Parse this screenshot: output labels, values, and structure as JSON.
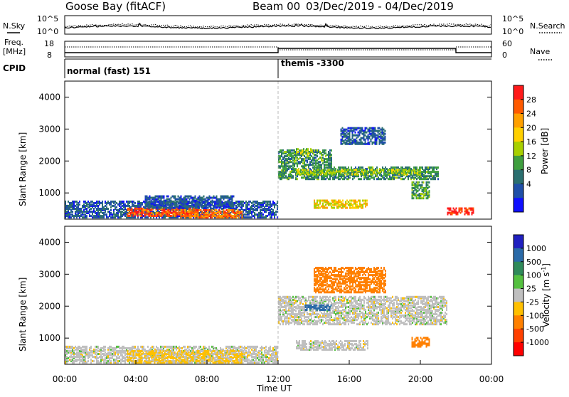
{
  "header": {
    "station": "Goose Bay (fitACF)",
    "beam": "Beam 00",
    "date_range": "03/Dec/2019 - 04/Dec/2019"
  },
  "top_panels": {
    "nsky": {
      "label": "N.Sky",
      "right_label": "N.Search",
      "ticks": [
        "10^5",
        "10^0"
      ],
      "right_ticks": [
        "10^5",
        "10^0"
      ]
    },
    "freq": {
      "label_line1": "Freq.",
      "label_line2": "[MHz]",
      "right_label": "Nave",
      "ticks": [
        "18",
        "8"
      ],
      "right_ticks": [
        "60",
        "0"
      ]
    },
    "cpid": {
      "label": "CPID",
      "modes": [
        "normal (fast) 151",
        "themis -3300"
      ]
    }
  },
  "colorbars": {
    "power": {
      "label": "Power [dB]",
      "ticks": [
        "28",
        "24",
        "20",
        "16",
        "12",
        "8",
        "4"
      ],
      "colors": [
        "#ff1a1a",
        "#ff5a00",
        "#ffa000",
        "#ffd000",
        "#a8d000",
        "#3f9f3f",
        "#2a6f6f",
        "#1f4fa8",
        "#1010ff"
      ]
    },
    "velocity": {
      "label": "Velocity [m s",
      "label_sup": "-1",
      "label_end": "]",
      "ticks": [
        "1000",
        "500",
        "100",
        "25",
        "-25",
        "-100",
        "-500",
        "-1000"
      ],
      "colors": [
        "#2020c0",
        "#2a6aa8",
        "#2f8a5a",
        "#55c040",
        "#bfbfbf",
        "#ffc000",
        "#ff8000",
        "#ff4000",
        "#ff0000"
      ]
    }
  },
  "axes": {
    "ylabel": "Slant Range [km]",
    "yticks": [
      "4000",
      "3000",
      "2000",
      "1000"
    ],
    "xlabel": "Time UT",
    "xticks": [
      "00:00",
      "04:00",
      "08:00",
      "12:00",
      "16:00",
      "20:00",
      "00:00"
    ]
  },
  "chart_data": [
    {
      "type": "heatmap",
      "title": "Power [dB]",
      "xlabel": "Time UT",
      "ylabel": "Slant Range [km]",
      "xlim": [
        0,
        24
      ],
      "ylim": [
        180,
        4500
      ],
      "colorbar_range": [
        0,
        30
      ],
      "regions": [
        {
          "t0": 0.0,
          "t1": 12.0,
          "r0": 200,
          "r1": 700,
          "dB": 6
        },
        {
          "t0": 3.5,
          "t1": 7.5,
          "r0": 250,
          "r1": 500,
          "dB": 26
        },
        {
          "t0": 6.5,
          "t1": 10.0,
          "r0": 200,
          "r1": 450,
          "dB": 24
        },
        {
          "t0": 4.5,
          "t1": 9.5,
          "r0": 500,
          "r1": 900,
          "dB": 6
        },
        {
          "t0": 12.0,
          "t1": 21.0,
          "r0": 1400,
          "r1": 1800,
          "dB": 10
        },
        {
          "t0": 13.0,
          "t1": 20.0,
          "r0": 1550,
          "r1": 1700,
          "dB": 14
        },
        {
          "t0": 12.0,
          "t1": 15.0,
          "r0": 1800,
          "r1": 2300,
          "dB": 10
        },
        {
          "t0": 14.0,
          "t1": 17.0,
          "r0": 500,
          "r1": 750,
          "dB": 18
        },
        {
          "t0": 13.0,
          "t1": 14.0,
          "r0": 2200,
          "r1": 2350,
          "dB": 15
        },
        {
          "t0": 15.5,
          "t1": 18.0,
          "r0": 2500,
          "r1": 3000,
          "dB": 6
        },
        {
          "t0": 19.5,
          "t1": 20.5,
          "r0": 800,
          "r1": 1300,
          "dB": 12
        },
        {
          "t0": 21.5,
          "t1": 23.0,
          "r0": 300,
          "r1": 500,
          "dB": 28
        }
      ]
    },
    {
      "type": "heatmap",
      "title": "Velocity [m s-1]",
      "xlabel": "Time UT",
      "ylabel": "Slant Range [km]",
      "xlim": [
        0,
        24
      ],
      "ylim": [
        180,
        4500
      ],
      "colorbar_range": [
        -1000,
        1000
      ],
      "regions": [
        {
          "t0": 0.0,
          "t1": 12.0,
          "r0": 200,
          "r1": 700,
          "v": 0
        },
        {
          "t0": 3.5,
          "t1": 10.0,
          "r0": 200,
          "r1": 600,
          "v": -40
        },
        {
          "t0": 12.0,
          "t1": 21.5,
          "r0": 1400,
          "r1": 2300,
          "v": 0
        },
        {
          "t0": 13.5,
          "t1": 15.0,
          "r0": 1850,
          "r1": 2000,
          "v": 150
        },
        {
          "t0": 14.0,
          "t1": 18.0,
          "r0": 2400,
          "r1": 3200,
          "v": -300
        },
        {
          "t0": 19.5,
          "t1": 20.5,
          "r0": 700,
          "r1": 1000,
          "v": -200
        },
        {
          "t0": 13.0,
          "t1": 17.0,
          "r0": 600,
          "r1": 900,
          "v": 0
        }
      ]
    }
  ]
}
